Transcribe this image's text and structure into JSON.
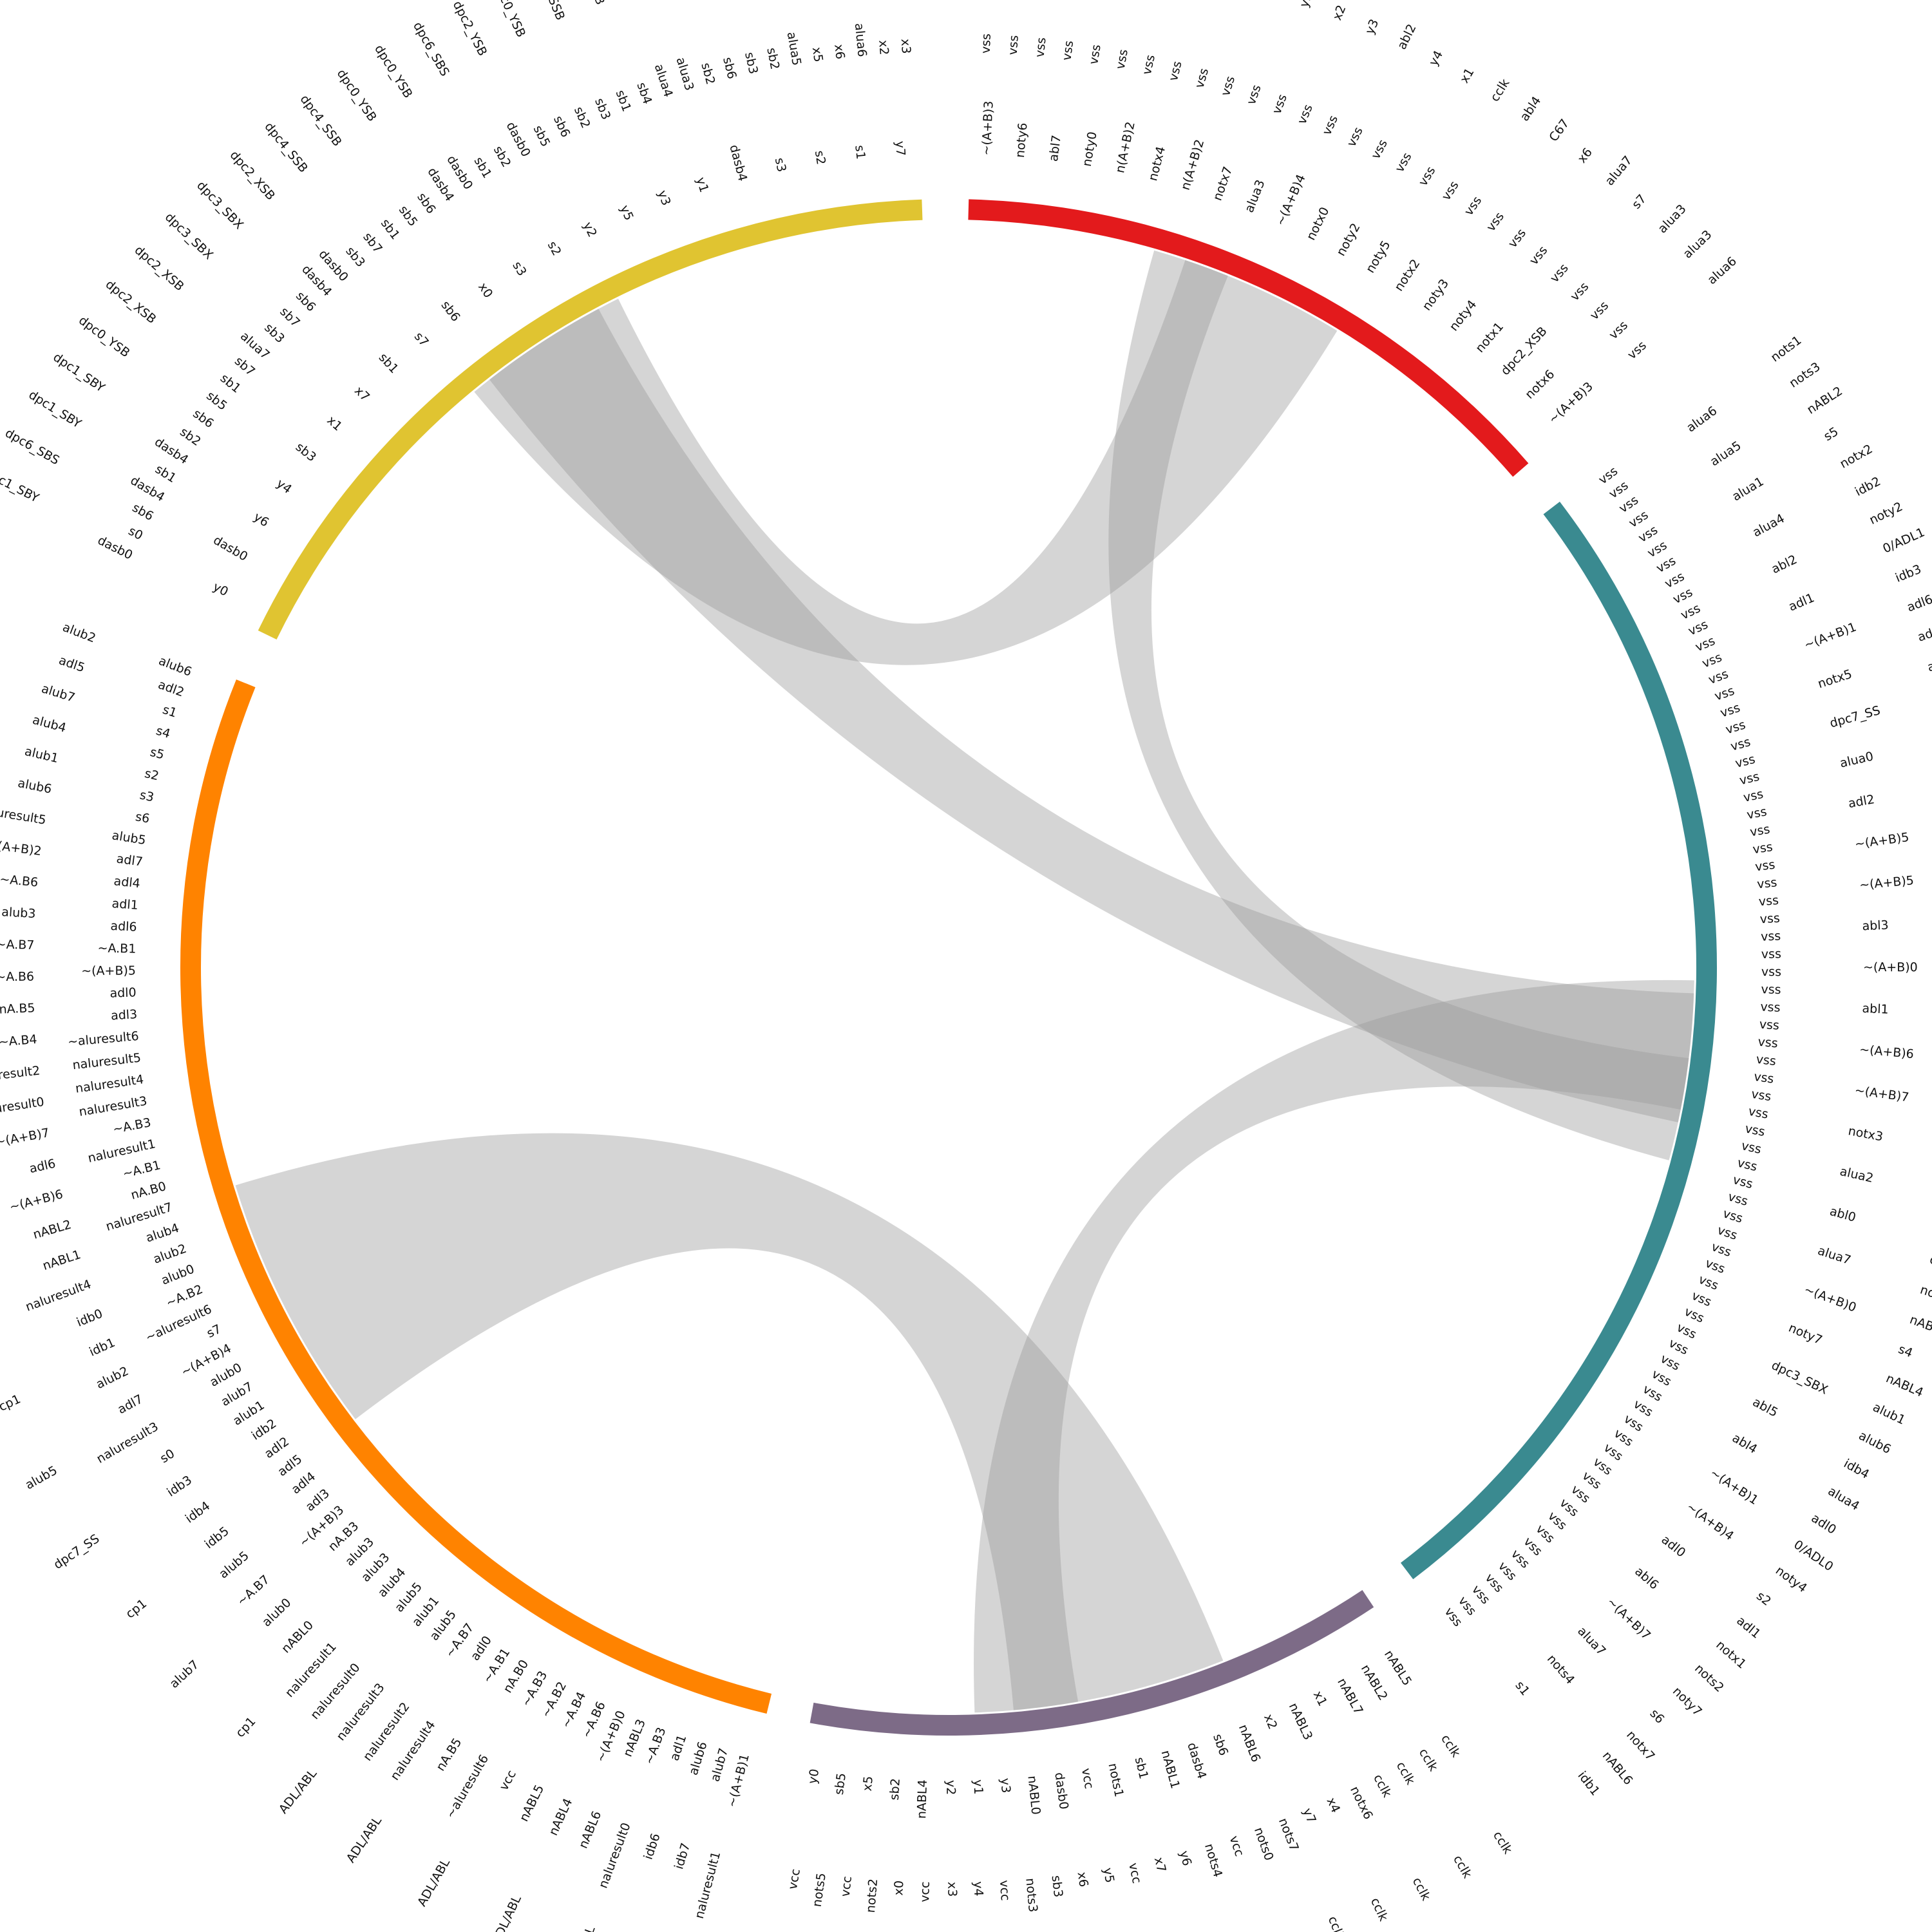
{
  "segments": [
    {
      "color": "#e31a1c",
      "rings": [
        [
          "~(A+B)3",
          "noty6",
          "abl7",
          "noty0",
          "n(A+B)2",
          "notx4",
          "n(A+B)2",
          "notx7",
          "alua3",
          "~(A+B)4",
          "notx0",
          "noty2",
          "noty5",
          "notx2",
          "noty3",
          "noty4",
          "notx1",
          "dpc2_XSB",
          "notx6",
          "~(A+B)3"
        ],
        [
          "vss",
          "vss",
          "vss",
          "vss",
          "vss",
          "vss",
          "vss",
          "vss",
          "vss",
          "vss",
          "vss",
          "vss",
          "vss",
          "vss",
          "vss",
          "vss",
          "vss",
          "vss",
          "vss",
          "vss",
          "vss",
          "vss",
          "vss",
          "vss",
          "vss",
          "vss",
          "vss",
          "vss"
        ],
        [
          "abl6",
          "alua2",
          "abl3",
          "abl7",
          "alub4",
          "y1",
          "x0",
          "adl2",
          "y2",
          "y5",
          "x2",
          "y3",
          "abl2",
          "y4",
          "x1",
          "cclk",
          "abl4",
          "C67",
          "x6",
          "alua7",
          "s7",
          "alua3",
          "alua3",
          "alua6"
        ]
      ]
    },
    {
      "color": "#3a8a90",
      "rings": [
        [
          "vss",
          "vss",
          "vss",
          "vss",
          "vss",
          "vss",
          "vss",
          "vss",
          "vss",
          "vss",
          "vss",
          "vss",
          "vss",
          "vss",
          "vss",
          "vss",
          "vss",
          "vss",
          "vss",
          "vss",
          "vss",
          "vss",
          "vss",
          "vss",
          "vss",
          "vss",
          "vss",
          "vss",
          "vss",
          "vss",
          "vss",
          "vss",
          "vss",
          "vss",
          "vss",
          "vss",
          "vss",
          "vss",
          "vss",
          "vss",
          "vss",
          "vss",
          "vss",
          "vss",
          "vss",
          "vss",
          "vss",
          "vss",
          "vss",
          "vss",
          "vss",
          "vss",
          "vss",
          "vss",
          "vss",
          "vss",
          "vss",
          "vss",
          "vss",
          "vss",
          "vss",
          "vss",
          "vss",
          "vss",
          "vss",
          "vss",
          "vss",
          "vss",
          "vss",
          "vss",
          "vss",
          "vss",
          "vss"
        ],
        [
          "alua6",
          "alua5",
          "alua1",
          "alua4",
          "abl2",
          "adl1",
          "~(A+B)1",
          "notx5",
          "dpc7_SS",
          "alua0",
          "adl2",
          "~(A+B)5",
          "~(A+B)5",
          "abl3",
          "~(A+B)0",
          "abl1",
          "~(A+B)6",
          "~(A+B)7",
          "notx3",
          "alua2",
          "abl0",
          "alua7",
          "~(A+B)0",
          "noty7",
          "dpc3_SBX",
          "abl5",
          "abl4",
          "~(A+B)1",
          "~(A+B)4",
          "adl0",
          "abl6",
          "~(A+B)7",
          "alua7",
          "nots4",
          "s1"
        ],
        [
          "nots1",
          "nots3",
          "nABL2",
          "s5",
          "notx2",
          "idb2",
          "noty2",
          "0/ADL1",
          "idb3",
          "adl6",
          "adl3",
          "alua5",
          "idb5",
          "s3",
          "adl4",
          "notx5",
          "alua1",
          "idb0",
          "x5",
          "cclk",
          "cclk",
          "nABL",
          "idb6",
          "s0",
          "noty3",
          "alub0",
          "nots5",
          "idb7",
          "y7",
          "cclk",
          "cclk",
          "nots0",
          "nABL5",
          "s4",
          "nABL4",
          "alub1",
          "alub6",
          "idb4",
          "alua4",
          "adl0",
          "0/ADL0",
          "noty4",
          "s2",
          "adl1",
          "notx1",
          "nots2",
          "noty7",
          "s6",
          "notx7",
          "nABL6",
          "idb1"
        ]
      ]
    },
    {
      "color": "#7d6b87",
      "rings": [
        [
          "nABL5",
          "nABL2",
          "nABL7",
          "x1",
          "nABL3",
          "x2",
          "nABL6",
          "sb6",
          "dasb4",
          "nABL1",
          "sb1",
          "nots1",
          "vcc",
          "dasb0",
          "nABL0",
          "y3",
          "y1",
          "y2",
          "nABL4",
          "sb2",
          "x5",
          "sb5",
          "y0"
        ],
        [
          "cclk",
          "cclk",
          "cclk",
          "cclk",
          "notx6",
          "x4",
          "y7",
          "nots7",
          "nots0",
          "vcc",
          "nots4",
          "y6",
          "x7",
          "vcc",
          "y5",
          "x6",
          "sb3",
          "nots3",
          "vcc",
          "y4",
          "x3",
          "vcc",
          "x0",
          "nots2",
          "vcc",
          "nots5",
          "vcc"
        ],
        [
          "cclk",
          "cclk",
          "cclk",
          "cclk",
          "cclk",
          "cclk",
          "cclk",
          "cclk",
          "cclk",
          "cclk",
          "cclk",
          "cclk",
          "cclk",
          "cclk",
          "cclk",
          "cclk",
          "cclk"
        ]
      ]
    },
    {
      "color": "#ff8300",
      "rings": [
        [
          "~(A+B)1",
          "alub7",
          "alub6",
          "adl1",
          "~A.B3",
          "nABL3",
          "~(A+B)0",
          "~A.B6",
          "~A.B4",
          "~A.B2",
          "~A.B3",
          "nA.B0",
          "~A.B1",
          "adl0",
          "~A.B7",
          "alub5",
          "alub1",
          "alub5",
          "alub4",
          "alub3",
          "alub3",
          "nA.B3",
          "~(A+B)3",
          "adl3",
          "adl4",
          "adl5",
          "adl2",
          "idb2",
          "alub1",
          "alub7",
          "alub0",
          "~(A+B)4",
          "s7",
          "~aluresult6",
          "~A.B2",
          "alub0",
          "alub2",
          "alub4",
          "naluresult7",
          "nA.B0",
          "~A.B1",
          "naluresult1",
          "~A.B3",
          "naluresult3",
          "naluresult4",
          "naluresult5",
          "~aluresult6",
          "adl3",
          "adl0",
          "~(A+B)5",
          "~A.B1",
          "adl6",
          "adl1",
          "adl4",
          "adl7",
          "alub5",
          "s6",
          "s3",
          "s2",
          "s5",
          "s4",
          "s1",
          "adl2",
          "alub6"
        ],
        [
          "naluresult1",
          "idb7",
          "idb6",
          "naluresult0",
          "nABL6",
          "nABL4",
          "nABL5",
          "vcc",
          "~aluresult6",
          "nA.B5",
          "naluresult4",
          "naluresult2",
          "naluresult3",
          "naluresult0",
          "naluresult1",
          "nABL0",
          "alub0",
          "~A.B7",
          "alub5",
          "idb5",
          "idb4",
          "idb3",
          "s0",
          "naluresult3",
          "adl7",
          "alub2",
          "idb1",
          "idb0",
          "naluresult4",
          "nABL1",
          "nABL2",
          "~(A+B)6",
          "adl6",
          "~(A+B)7",
          "naluresult0",
          "naluresult2",
          "~A.B4",
          "nA.B5",
          "~A.B6",
          "~A.B7",
          "alub3",
          "~A.B6",
          "n(A+B)2",
          "naluresult5",
          "alub6",
          "alub1",
          "alub4",
          "alub7",
          "adl5",
          "alub2"
        ],
        [
          "alub3",
          "ADL/ABL",
          "ADL/ABL",
          "ADL/ABL",
          "ADL/ABL",
          "ADL/ABL",
          "cp1",
          "alub7",
          "cp1",
          "dpc7_SS",
          "alub5",
          "cp1",
          "cp1",
          "ADL/ABL",
          "ADL/ABL",
          "dpc7_SS",
          "alub2",
          "cp1",
          "alub0",
          "dpc7_SS",
          "dpc7_SS",
          "dpc7_SS"
        ]
      ]
    },
    {
      "color": "#e0c431",
      "rings": [
        [
          "y0",
          "dasb0",
          "y6",
          "y4",
          "sb3",
          "x1",
          "x7",
          "sb1",
          "s7",
          "sb6",
          "x0",
          "s3",
          "s2",
          "y2",
          "y5",
          "y3",
          "y1",
          "dasb4",
          "s3",
          "s2",
          "s1",
          "y7"
        ],
        [
          "dasb0",
          "s0",
          "sb6",
          "dasb4",
          "sb1",
          "dasb4",
          "sb2",
          "sb6",
          "sb5",
          "sb1",
          "sb7",
          "alua7",
          "sb3",
          "sb7",
          "sb6",
          "dasb4",
          "dasb0",
          "sb3",
          "sb7",
          "sb1",
          "sb5",
          "sb6",
          "dasb4",
          "dasb0",
          "sb1",
          "sb2",
          "dasb0",
          "sb5",
          "sb6",
          "sb2",
          "sb3",
          "sb1",
          "sb4",
          "alua4",
          "alua3",
          "sb2",
          "sb6",
          "sb3",
          "sb2",
          "alua5",
          "x5",
          "x6",
          "alua6",
          "x2",
          "x3"
        ],
        [
          "dpc1_SBY",
          "dpc6_SBS",
          "dpc1_SBY",
          "dpc1_SBY",
          "dpc0_YSB",
          "dpc2_XSB",
          "dpc2_XSB",
          "dpc3_SBX",
          "dpc3_SBX",
          "dpc2_XSB",
          "dpc4_SSB",
          "dpc4_SSB",
          "dpc0_YSB",
          "dpc0_YSB",
          "dpc6_SBS",
          "dpc2_YSB",
          "dpc0_YSB",
          "dpc4_SSB",
          "dpc0_YSB",
          "dpc3_SBX",
          "dpc1_SBY",
          "dpc6_SBS",
          "dpc6_SBS",
          "dpc1_SBY",
          "dpc6_SBS",
          "dpc4_SSB"
        ]
      ]
    }
  ]
}
